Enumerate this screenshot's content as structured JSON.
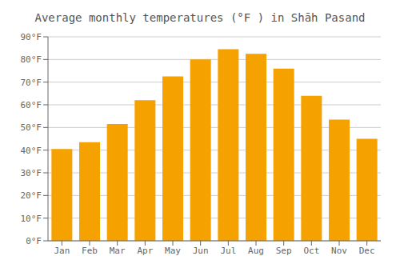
{
  "chart_data": {
    "type": "bar",
    "title": "Average monthly temperatures (°F ) in Shāh Pasand",
    "categories": [
      "Jan",
      "Feb",
      "Mar",
      "Apr",
      "May",
      "Jun",
      "Jul",
      "Aug",
      "Sep",
      "Oct",
      "Nov",
      "Dec"
    ],
    "values": [
      40.5,
      43.5,
      51.5,
      62.0,
      72.5,
      80.0,
      84.5,
      82.5,
      76.0,
      64.0,
      53.5,
      45.0
    ],
    "color": "#F5A200",
    "ylim": [
      0,
      90
    ],
    "yticks": [
      {
        "value": 0,
        "label": "0°F"
      },
      {
        "value": 10,
        "label": "10°F"
      },
      {
        "value": 20,
        "label": "20°F"
      },
      {
        "value": 30,
        "label": "30°F"
      },
      {
        "value": 40,
        "label": "40°F"
      },
      {
        "value": 50,
        "label": "50°F"
      },
      {
        "value": 60,
        "label": "60°F"
      },
      {
        "value": 70,
        "label": "70°F"
      },
      {
        "value": 80,
        "label": "80°F"
      },
      {
        "value": 90,
        "label": "90°F"
      }
    ],
    "grid": true
  }
}
